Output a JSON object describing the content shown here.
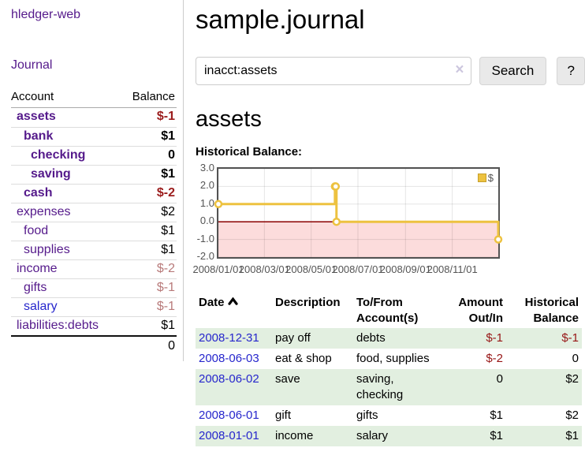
{
  "colors": {
    "link_purple": "#551a8b",
    "link_blue": "#2626cc",
    "negative_strong": "#9b1c1c",
    "negative_soft": "#b87a7a",
    "table_negative": "#971515",
    "row_stripe_green": "#e2efe0",
    "chart_line_gold": "#edc240"
  },
  "sidebar": {
    "brand": "hledger-web",
    "nav": {
      "journal_label": "Journal"
    },
    "accounts_table": {
      "headers": {
        "account": "Account",
        "balance": "Balance"
      },
      "rows": [
        {
          "name": "assets",
          "balance": "$-1",
          "indent": 0,
          "bold": true,
          "balance_class": "neg-strong"
        },
        {
          "name": "bank",
          "balance": "$1",
          "indent": 1,
          "bold": true,
          "balance_class": ""
        },
        {
          "name": "checking",
          "balance": "0",
          "indent": 2,
          "bold": true,
          "balance_class": ""
        },
        {
          "name": "saving",
          "balance": "$1",
          "indent": 2,
          "bold": true,
          "balance_class": ""
        },
        {
          "name": "cash",
          "balance": "$-2",
          "indent": 1,
          "bold": true,
          "balance_class": "neg-strong"
        },
        {
          "name": "expenses",
          "balance": "$2",
          "indent": 0,
          "bold": false,
          "balance_class": ""
        },
        {
          "name": "food",
          "balance": "$1",
          "indent": 1,
          "bold": false,
          "balance_class": ""
        },
        {
          "name": "supplies",
          "balance": "$1",
          "indent": 1,
          "bold": false,
          "balance_class": ""
        },
        {
          "name": "income",
          "balance": "$-2",
          "indent": 0,
          "bold": false,
          "balance_class": "neg-soft"
        },
        {
          "name": "gifts",
          "balance": "$-1",
          "indent": 1,
          "bold": false,
          "balance_class": "neg-soft"
        },
        {
          "name": "salary",
          "balance": "$-1",
          "indent": 1,
          "bold": false,
          "balance_class": "neg-soft",
          "link_color": "blue"
        },
        {
          "name": "liabilities:debts",
          "balance": "$1",
          "indent": 0,
          "bold": false,
          "balance_class": ""
        }
      ],
      "total": "0"
    }
  },
  "header": {
    "title": "sample.journal"
  },
  "search": {
    "value": "inacct:assets",
    "clear_icon": "×",
    "search_label": "Search",
    "help_label": "?"
  },
  "account_page": {
    "title": "assets",
    "chart_label": "Historical Balance:"
  },
  "chart_data": {
    "type": "line",
    "style": "step-after",
    "series": [
      {
        "name": "$",
        "color": "#edc240",
        "points": [
          [
            "2008-01-01",
            1
          ],
          [
            "2008-06-01",
            2
          ],
          [
            "2008-06-02",
            2
          ],
          [
            "2008-06-03",
            0
          ],
          [
            "2008-12-31",
            -1
          ]
        ]
      }
    ],
    "x_ticks": [
      "2008/01/01",
      "2008/03/01",
      "2008/05/01",
      "2008/07/01",
      "2008/09/01",
      "2008/11/01"
    ],
    "y_ticks": [
      "3.0",
      "2.0",
      "1.0",
      "0.0",
      "-1.0",
      "-2.0"
    ],
    "xlim": [
      "2008-01-01",
      "2008-12-31"
    ],
    "ylim": [
      -2,
      3
    ],
    "grid": true,
    "negative_region_color": "#fcdcdc",
    "zero_line_color": "#8b0000",
    "legend": {
      "label": "$",
      "position": "top-right"
    }
  },
  "transactions_table": {
    "headers": [
      "Date",
      "Description",
      "To/From Account(s)",
      "Amount Out/In",
      "Historical Balance"
    ],
    "sort": {
      "column": "Date",
      "direction": "asc"
    },
    "rows": [
      {
        "date": "2008-12-31",
        "description": "pay off",
        "accounts": "debts",
        "amount": "$-1",
        "amount_neg": true,
        "balance": "$-1",
        "balance_neg": true
      },
      {
        "date": "2008-06-03",
        "description": "eat & shop",
        "accounts": "food, supplies",
        "amount": "$-2",
        "amount_neg": true,
        "balance": "0",
        "balance_neg": false
      },
      {
        "date": "2008-06-02",
        "description": "save",
        "accounts": "saving, checking",
        "amount": "0",
        "amount_neg": false,
        "balance": "$2",
        "balance_neg": false
      },
      {
        "date": "2008-06-01",
        "description": "gift",
        "accounts": "gifts",
        "amount": "$1",
        "amount_neg": false,
        "balance": "$2",
        "balance_neg": false
      },
      {
        "date": "2008-01-01",
        "description": "income",
        "accounts": "salary",
        "amount": "$1",
        "amount_neg": false,
        "balance": "$1",
        "balance_neg": false
      }
    ]
  }
}
